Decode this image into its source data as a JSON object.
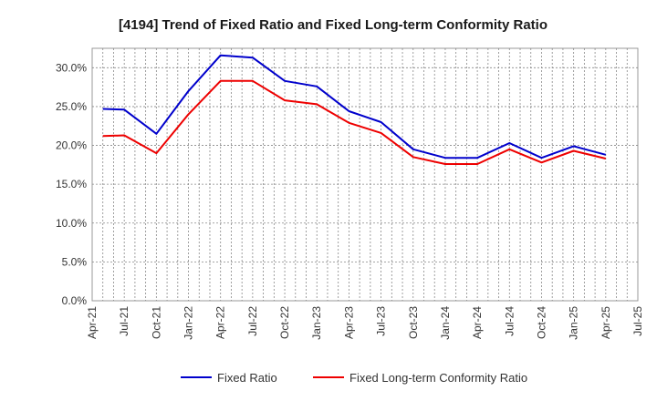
{
  "chart_data": {
    "type": "line",
    "title": "[4194]  Trend of Fixed Ratio and Fixed Long-term Conformity Ratio",
    "x_ticks": [
      "Apr-21",
      "Jul-21",
      "Oct-21",
      "Jan-22",
      "Apr-22",
      "Jul-22",
      "Oct-22",
      "Jan-23",
      "Apr-23",
      "Jul-23",
      "Oct-23",
      "Jan-24",
      "Apr-24",
      "Jul-24",
      "Oct-24",
      "Jan-25",
      "Apr-25",
      "Jul-25"
    ],
    "x": [
      "May-21",
      "Jul-21",
      "Oct-21",
      "Jan-22",
      "Apr-22",
      "Jul-22",
      "Oct-22",
      "Jan-23",
      "Apr-23",
      "Jul-23",
      "Oct-23",
      "Jan-24",
      "Apr-24",
      "Jul-24",
      "Oct-24",
      "Jan-25",
      "Apr-25"
    ],
    "y_ticks": [
      "0.0%",
      "5.0%",
      "10.0%",
      "15.0%",
      "20.0%",
      "25.0%",
      "30.0%"
    ],
    "ylim": [
      0,
      32.5
    ],
    "grid": true,
    "legend_position": "bottom",
    "series": [
      {
        "name": "Fixed Ratio",
        "color": "#0000cc",
        "values": [
          24.7,
          24.6,
          21.5,
          27.0,
          31.6,
          31.3,
          28.3,
          27.6,
          24.4,
          23.0,
          19.5,
          18.4,
          18.4,
          20.3,
          18.4,
          19.9,
          18.8
        ]
      },
      {
        "name": "Fixed Long-term Conformity Ratio",
        "color": "#ee0000",
        "values": [
          21.2,
          21.3,
          19.0,
          24.0,
          28.3,
          28.3,
          25.8,
          25.3,
          22.9,
          21.6,
          18.5,
          17.6,
          17.6,
          19.5,
          17.8,
          19.3,
          18.3
        ]
      }
    ]
  }
}
